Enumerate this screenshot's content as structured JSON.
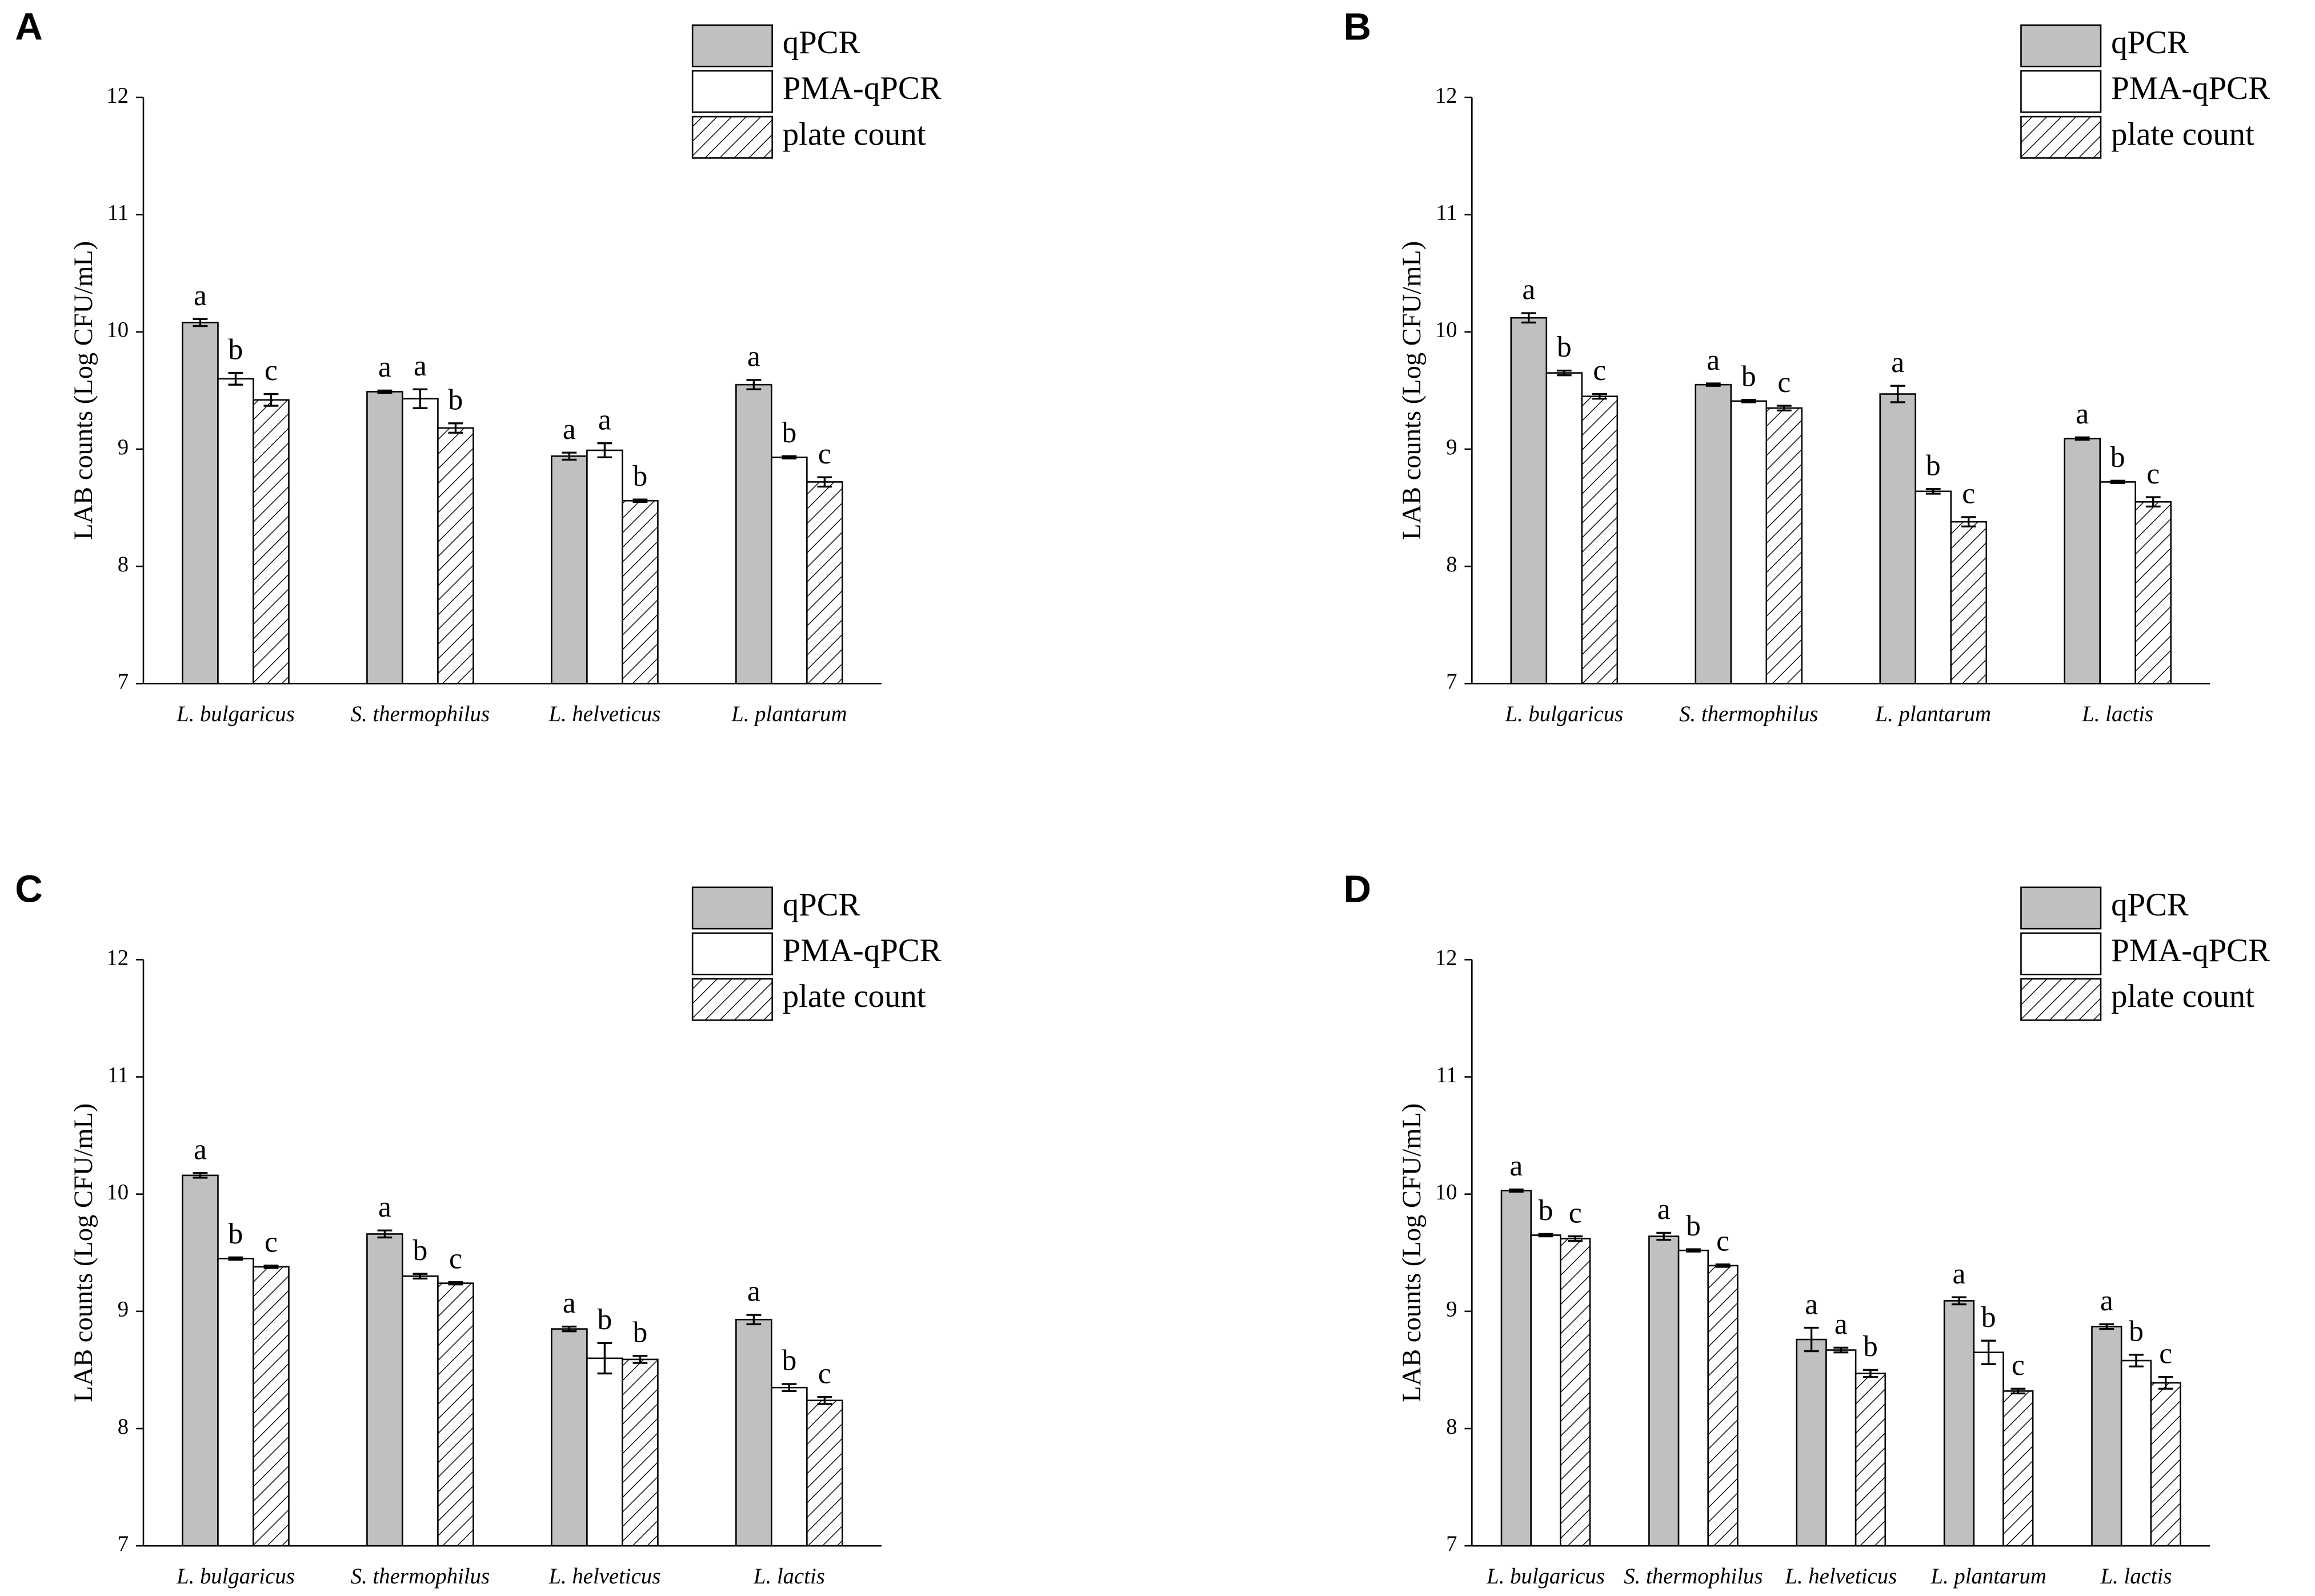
{
  "chart_data": [
    {
      "type": "bar",
      "panel": "A",
      "y_label": "LAB counts (Log CFU/mL)",
      "categories": [
        "L. bulgaricus",
        "S. thermophilus",
        "L. helveticus",
        "L. plantarum"
      ],
      "ylim": [
        7,
        12
      ],
      "yticks": [
        7,
        8,
        9,
        10,
        11,
        12
      ],
      "series": [
        {
          "name": "qPCR",
          "color": "#c0c0c0",
          "values": [
            10.08,
            9.49,
            8.94,
            9.55
          ],
          "errors": [
            0.03,
            0.01,
            0.03,
            0.04
          ],
          "letters": [
            "a",
            "a",
            "a",
            "a"
          ]
        },
        {
          "name": "PMA-qPCR",
          "color": "#ffffff",
          "values": [
            9.6,
            9.43,
            8.99,
            8.93
          ],
          "errors": [
            0.05,
            0.08,
            0.06,
            0.01
          ],
          "letters": [
            "b",
            "a",
            "a",
            "b"
          ]
        },
        {
          "name": "plate count",
          "color": "#000000",
          "pattern": "hatch",
          "values": [
            9.42,
            9.18,
            8.56,
            8.72
          ],
          "errors": [
            0.05,
            0.04,
            0.01,
            0.04
          ],
          "letters": [
            "c",
            "b",
            "b",
            "c"
          ]
        }
      ]
    },
    {
      "type": "bar",
      "panel": "B",
      "y_label": "LAB counts (Log CFU/mL)",
      "categories": [
        "L. bulgaricus",
        "S. thermophilus",
        "L. plantarum",
        "L. lactis"
      ],
      "ylim": [
        7,
        12
      ],
      "yticks": [
        7,
        8,
        9,
        10,
        11,
        12
      ],
      "series": [
        {
          "name": "qPCR",
          "color": "#c0c0c0",
          "values": [
            10.12,
            9.55,
            9.47,
            9.09
          ],
          "errors": [
            0.04,
            0.01,
            0.07,
            0.01
          ],
          "letters": [
            "a",
            "a",
            "a",
            "a"
          ]
        },
        {
          "name": "PMA-qPCR",
          "color": "#ffffff",
          "values": [
            9.65,
            9.41,
            8.64,
            8.72
          ],
          "errors": [
            0.02,
            0.01,
            0.02,
            0.01
          ],
          "letters": [
            "b",
            "b",
            "b",
            "b"
          ]
        },
        {
          "name": "plate count",
          "color": "#000000",
          "pattern": "hatch",
          "values": [
            9.45,
            9.35,
            8.38,
            8.55
          ],
          "errors": [
            0.02,
            0.02,
            0.04,
            0.04
          ],
          "letters": [
            "c",
            "c",
            "c",
            "c"
          ]
        }
      ]
    },
    {
      "type": "bar",
      "panel": "C",
      "y_label": "LAB counts (Log CFU/mL)",
      "categories": [
        "L. bulgaricus",
        "S. thermophilus",
        "L. helveticus",
        "L. lactis"
      ],
      "ylim": [
        7,
        12
      ],
      "yticks": [
        7,
        8,
        9,
        10,
        11,
        12
      ],
      "series": [
        {
          "name": "qPCR",
          "color": "#c0c0c0",
          "values": [
            10.16,
            9.66,
            8.85,
            8.93
          ],
          "errors": [
            0.02,
            0.03,
            0.02,
            0.04
          ],
          "letters": [
            "a",
            "a",
            "a",
            "a"
          ]
        },
        {
          "name": "PMA-qPCR",
          "color": "#ffffff",
          "values": [
            9.45,
            9.3,
            8.6,
            8.35
          ],
          "errors": [
            0.01,
            0.02,
            0.13,
            0.03
          ],
          "letters": [
            "b",
            "b",
            "b",
            "b"
          ]
        },
        {
          "name": "plate count",
          "color": "#000000",
          "pattern": "hatch",
          "values": [
            9.38,
            9.24,
            8.59,
            8.24
          ],
          "errors": [
            0.01,
            0.01,
            0.03,
            0.03
          ],
          "letters": [
            "c",
            "c",
            "b",
            "c"
          ]
        }
      ]
    },
    {
      "type": "bar",
      "panel": "D",
      "y_label": "LAB counts (Log CFU/mL)",
      "categories": [
        "L. bulgaricus",
        "S. thermophilus",
        "L. helveticus",
        "L. plantarum",
        "L. lactis"
      ],
      "ylim": [
        7,
        12
      ],
      "yticks": [
        7,
        8,
        9,
        10,
        11,
        12
      ],
      "series": [
        {
          "name": "qPCR",
          "color": "#c0c0c0",
          "values": [
            10.03,
            9.64,
            8.76,
            9.09,
            8.87
          ],
          "errors": [
            0.01,
            0.03,
            0.1,
            0.03,
            0.02
          ],
          "letters": [
            "a",
            "a",
            "a",
            "a",
            "a"
          ]
        },
        {
          "name": "PMA-qPCR",
          "color": "#ffffff",
          "values": [
            9.65,
            9.52,
            8.67,
            8.65,
            8.58
          ],
          "errors": [
            0.01,
            0.01,
            0.02,
            0.1,
            0.05
          ],
          "letters": [
            "b",
            "b",
            "a",
            "b",
            "b"
          ]
        },
        {
          "name": "plate count",
          "color": "#000000",
          "pattern": "hatch",
          "values": [
            9.62,
            9.39,
            8.47,
            8.32,
            8.39
          ],
          "errors": [
            0.02,
            0.01,
            0.03,
            0.02,
            0.05
          ],
          "letters": [
            "c",
            "c",
            "b",
            "c",
            "c"
          ]
        }
      ]
    }
  ]
}
